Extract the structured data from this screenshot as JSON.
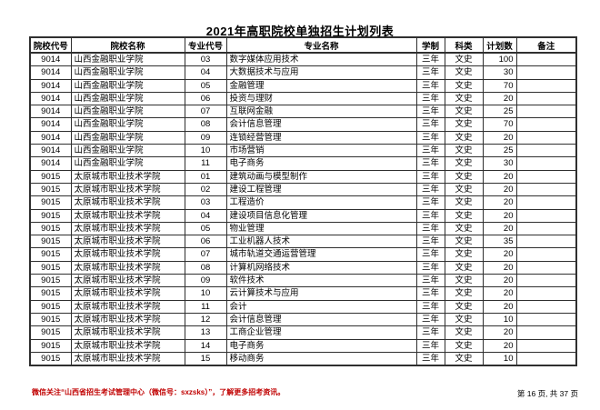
{
  "title": "2021年高职院校单独招生计划列表",
  "table": {
    "columns": [
      {
        "key": "college_code",
        "label": "院校代号",
        "align": "center"
      },
      {
        "key": "college_name",
        "label": "院校名称",
        "align": "left"
      },
      {
        "key": "major_code",
        "label": "专业代号",
        "align": "center"
      },
      {
        "key": "major_name",
        "label": "专业名称",
        "align": "left"
      },
      {
        "key": "duration",
        "label": "学制",
        "align": "center"
      },
      {
        "key": "category",
        "label": "科类",
        "align": "center"
      },
      {
        "key": "plan_count",
        "label": "计划数",
        "align": "right"
      },
      {
        "key": "remark",
        "label": "备注",
        "align": "left"
      }
    ],
    "rows": [
      [
        "9014",
        "山西金融职业学院",
        "03",
        "数字媒体应用技术",
        "三年",
        "文史",
        "100",
        ""
      ],
      [
        "9014",
        "山西金融职业学院",
        "04",
        "大数据技术与应用",
        "三年",
        "文史",
        "30",
        ""
      ],
      [
        "9014",
        "山西金融职业学院",
        "05",
        "金融管理",
        "三年",
        "文史",
        "70",
        ""
      ],
      [
        "9014",
        "山西金融职业学院",
        "06",
        "投资与理财",
        "三年",
        "文史",
        "20",
        ""
      ],
      [
        "9014",
        "山西金融职业学院",
        "07",
        "互联网金融",
        "三年",
        "文史",
        "25",
        ""
      ],
      [
        "9014",
        "山西金融职业学院",
        "08",
        "会计信息管理",
        "三年",
        "文史",
        "70",
        ""
      ],
      [
        "9014",
        "山西金融职业学院",
        "09",
        "连锁经营管理",
        "三年",
        "文史",
        "20",
        ""
      ],
      [
        "9014",
        "山西金融职业学院",
        "10",
        "市场营销",
        "三年",
        "文史",
        "25",
        ""
      ],
      [
        "9014",
        "山西金融职业学院",
        "11",
        "电子商务",
        "三年",
        "文史",
        "30",
        ""
      ],
      [
        "9015",
        "太原城市职业技术学院",
        "01",
        "建筑动画与模型制作",
        "三年",
        "文史",
        "20",
        ""
      ],
      [
        "9015",
        "太原城市职业技术学院",
        "02",
        "建设工程管理",
        "三年",
        "文史",
        "20",
        ""
      ],
      [
        "9015",
        "太原城市职业技术学院",
        "03",
        "工程造价",
        "三年",
        "文史",
        "20",
        ""
      ],
      [
        "9015",
        "太原城市职业技术学院",
        "04",
        "建设项目信息化管理",
        "三年",
        "文史",
        "20",
        ""
      ],
      [
        "9015",
        "太原城市职业技术学院",
        "05",
        "物业管理",
        "三年",
        "文史",
        "20",
        ""
      ],
      [
        "9015",
        "太原城市职业技术学院",
        "06",
        "工业机器人技术",
        "三年",
        "文史",
        "35",
        ""
      ],
      [
        "9015",
        "太原城市职业技术学院",
        "07",
        "城市轨道交通运营管理",
        "三年",
        "文史",
        "20",
        ""
      ],
      [
        "9015",
        "太原城市职业技术学院",
        "08",
        "计算机网络技术",
        "三年",
        "文史",
        "20",
        ""
      ],
      [
        "9015",
        "太原城市职业技术学院",
        "09",
        "软件技术",
        "三年",
        "文史",
        "20",
        ""
      ],
      [
        "9015",
        "太原城市职业技术学院",
        "10",
        "云计算技术与应用",
        "三年",
        "文史",
        "20",
        ""
      ],
      [
        "9015",
        "太原城市职业技术学院",
        "11",
        "会计",
        "三年",
        "文史",
        "20",
        ""
      ],
      [
        "9015",
        "太原城市职业技术学院",
        "12",
        "会计信息管理",
        "三年",
        "文史",
        "10",
        ""
      ],
      [
        "9015",
        "太原城市职业技术学院",
        "13",
        "工商企业管理",
        "三年",
        "文史",
        "20",
        ""
      ],
      [
        "9015",
        "太原城市职业技术学院",
        "14",
        "电子商务",
        "三年",
        "文史",
        "20",
        ""
      ],
      [
        "9015",
        "太原城市职业技术学院",
        "15",
        "移动商务",
        "三年",
        "文史",
        "10",
        ""
      ]
    ]
  },
  "footer": {
    "notice": "微信关注“山西省招生考试管理中心（微信号：sxzsks）”，了解更多招考资讯。",
    "notice_color": "#c00000",
    "page_info": "第 16 页, 共 37 页"
  },
  "colors": {
    "border": "#2f2f2f",
    "text": "#000000",
    "background": "#ffffff"
  }
}
